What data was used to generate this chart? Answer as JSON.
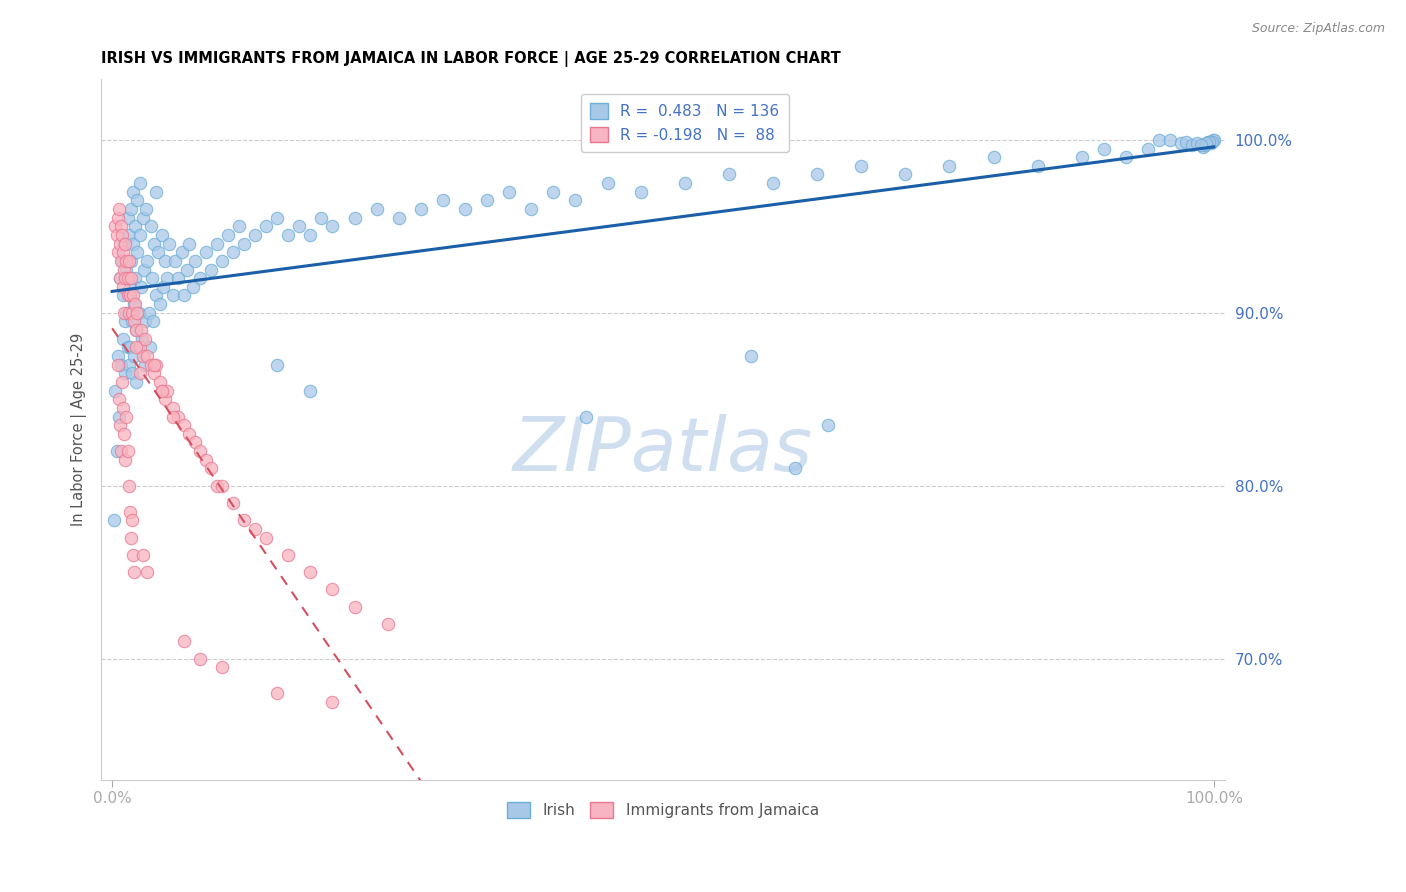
{
  "title": "IRISH VS IMMIGRANTS FROM JAMAICA IN LABOR FORCE | AGE 25-29 CORRELATION CHART",
  "source": "Source: ZipAtlas.com",
  "ylabel": "In Labor Force | Age 25-29",
  "right_yticks": [
    0.7,
    0.8,
    0.9,
    1.0
  ],
  "right_ytick_labels": [
    "70.0%",
    "80.0%",
    "90.0%",
    "100.0%"
  ],
  "legend_irish": "Irish",
  "legend_jamaica": "Immigrants from Jamaica",
  "R_irish": 0.483,
  "N_irish": 136,
  "R_jamaica": -0.198,
  "N_jamaica": 88,
  "irish_color": "#a8c8e8",
  "irish_edge_color": "#6baed6",
  "irish_line_color": "#1a5fa8",
  "jamaica_color": "#f8b4c0",
  "jamaica_edge_color": "#e87890",
  "jamaica_line_color": "#d45060",
  "watermark": "ZIPatlas",
  "watermark_color": "#d0dff0",
  "ylim_low": 0.63,
  "ylim_high": 1.035,
  "irish_scatter_x": [
    0.005,
    0.007,
    0.008,
    0.009,
    0.01,
    0.01,
    0.011,
    0.012,
    0.012,
    0.013,
    0.013,
    0.014,
    0.014,
    0.015,
    0.015,
    0.015,
    0.016,
    0.016,
    0.017,
    0.017,
    0.018,
    0.018,
    0.019,
    0.019,
    0.02,
    0.02,
    0.021,
    0.021,
    0.022,
    0.022,
    0.023,
    0.023,
    0.024,
    0.025,
    0.025,
    0.026,
    0.027,
    0.028,
    0.029,
    0.03,
    0.03,
    0.031,
    0.032,
    0.033,
    0.034,
    0.035,
    0.036,
    0.037,
    0.038,
    0.04,
    0.04,
    0.042,
    0.043,
    0.045,
    0.046,
    0.048,
    0.05,
    0.052,
    0.055,
    0.057,
    0.06,
    0.063,
    0.065,
    0.068,
    0.07,
    0.073,
    0.075,
    0.08,
    0.085,
    0.09,
    0.095,
    0.1,
    0.105,
    0.11,
    0.115,
    0.12,
    0.13,
    0.14,
    0.15,
    0.16,
    0.17,
    0.18,
    0.19,
    0.2,
    0.22,
    0.24,
    0.26,
    0.28,
    0.3,
    0.32,
    0.34,
    0.36,
    0.38,
    0.4,
    0.42,
    0.45,
    0.48,
    0.52,
    0.56,
    0.6,
    0.64,
    0.68,
    0.72,
    0.76,
    0.8,
    0.84,
    0.88,
    0.9,
    0.92,
    0.94,
    0.95,
    0.96,
    0.97,
    0.975,
    0.98,
    0.985,
    0.99,
    0.992,
    0.995,
    0.997,
    0.999,
    1.0,
    0.998,
    0.996,
    0.993,
    0.988,
    0.003,
    0.006,
    0.004,
    0.002,
    0.15,
    0.18,
    0.43,
    0.58,
    0.62,
    0.65
  ],
  "irish_scatter_y": [
    0.875,
    0.92,
    0.87,
    0.93,
    0.91,
    0.885,
    0.94,
    0.895,
    0.865,
    0.925,
    0.9,
    0.88,
    0.955,
    0.91,
    0.87,
    0.945,
    0.915,
    0.88,
    0.96,
    0.93,
    0.895,
    0.865,
    0.97,
    0.94,
    0.905,
    0.875,
    0.95,
    0.92,
    0.89,
    0.86,
    0.965,
    0.935,
    0.9,
    0.975,
    0.945,
    0.915,
    0.885,
    0.955,
    0.925,
    0.895,
    0.87,
    0.96,
    0.93,
    0.9,
    0.88,
    0.95,
    0.92,
    0.895,
    0.94,
    0.97,
    0.91,
    0.935,
    0.905,
    0.945,
    0.915,
    0.93,
    0.92,
    0.94,
    0.91,
    0.93,
    0.92,
    0.935,
    0.91,
    0.925,
    0.94,
    0.915,
    0.93,
    0.92,
    0.935,
    0.925,
    0.94,
    0.93,
    0.945,
    0.935,
    0.95,
    0.94,
    0.945,
    0.95,
    0.955,
    0.945,
    0.95,
    0.945,
    0.955,
    0.95,
    0.955,
    0.96,
    0.955,
    0.96,
    0.965,
    0.96,
    0.965,
    0.97,
    0.96,
    0.97,
    0.965,
    0.975,
    0.97,
    0.975,
    0.98,
    0.975,
    0.98,
    0.985,
    0.98,
    0.985,
    0.99,
    0.985,
    0.99,
    0.995,
    0.99,
    0.995,
    1.0,
    1.0,
    0.998,
    0.999,
    0.997,
    0.998,
    0.996,
    0.997,
    0.999,
    0.998,
    1.0,
    1.0,
    0.999,
    0.999,
    0.998,
    0.997,
    0.855,
    0.84,
    0.82,
    0.78,
    0.87,
    0.855,
    0.84,
    0.875,
    0.81,
    0.835
  ],
  "jamaica_scatter_x": [
    0.003,
    0.004,
    0.005,
    0.005,
    0.006,
    0.007,
    0.007,
    0.008,
    0.008,
    0.009,
    0.01,
    0.01,
    0.011,
    0.011,
    0.012,
    0.012,
    0.013,
    0.014,
    0.014,
    0.015,
    0.015,
    0.016,
    0.017,
    0.018,
    0.019,
    0.02,
    0.021,
    0.022,
    0.023,
    0.025,
    0.026,
    0.028,
    0.03,
    0.032,
    0.035,
    0.038,
    0.04,
    0.043,
    0.045,
    0.048,
    0.05,
    0.055,
    0.06,
    0.065,
    0.07,
    0.075,
    0.08,
    0.085,
    0.09,
    0.095,
    0.1,
    0.11,
    0.12,
    0.13,
    0.14,
    0.16,
    0.18,
    0.2,
    0.22,
    0.25,
    0.005,
    0.006,
    0.007,
    0.008,
    0.009,
    0.01,
    0.011,
    0.012,
    0.013,
    0.014,
    0.015,
    0.016,
    0.017,
    0.018,
    0.019,
    0.02,
    0.022,
    0.025,
    0.028,
    0.032,
    0.038,
    0.045,
    0.055,
    0.065,
    0.08,
    0.1,
    0.15,
    0.2
  ],
  "jamaica_scatter_y": [
    0.95,
    0.945,
    0.955,
    0.935,
    0.96,
    0.94,
    0.92,
    0.95,
    0.93,
    0.945,
    0.935,
    0.915,
    0.925,
    0.9,
    0.94,
    0.92,
    0.93,
    0.91,
    0.92,
    0.9,
    0.93,
    0.91,
    0.92,
    0.9,
    0.91,
    0.895,
    0.905,
    0.89,
    0.9,
    0.88,
    0.89,
    0.875,
    0.885,
    0.875,
    0.87,
    0.865,
    0.87,
    0.86,
    0.855,
    0.85,
    0.855,
    0.845,
    0.84,
    0.835,
    0.83,
    0.825,
    0.82,
    0.815,
    0.81,
    0.8,
    0.8,
    0.79,
    0.78,
    0.775,
    0.77,
    0.76,
    0.75,
    0.74,
    0.73,
    0.72,
    0.87,
    0.85,
    0.835,
    0.82,
    0.86,
    0.845,
    0.83,
    0.815,
    0.84,
    0.82,
    0.8,
    0.785,
    0.77,
    0.78,
    0.76,
    0.75,
    0.88,
    0.865,
    0.76,
    0.75,
    0.87,
    0.855,
    0.84,
    0.71,
    0.7,
    0.695,
    0.68,
    0.675
  ]
}
